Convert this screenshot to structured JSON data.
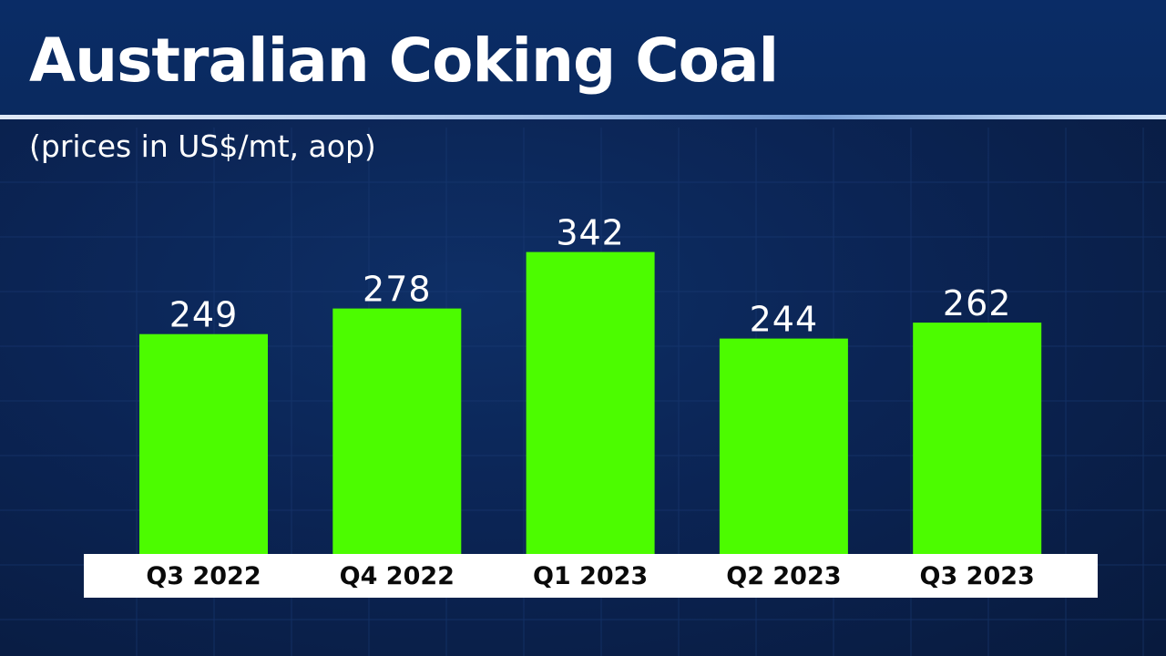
{
  "chart_data": {
    "type": "bar",
    "title": "Australian Coking Coal",
    "subtitle": "(prices in US$/mt, aop)",
    "categories": [
      "Q3 2022",
      "Q4 2022",
      "Q1 2023",
      "Q2 2023",
      "Q3 2023"
    ],
    "values": [
      249,
      278,
      342,
      244,
      262
    ],
    "value_labels": [
      "249",
      "278",
      "342",
      "244",
      "262"
    ],
    "xlabel": "",
    "ylabel": "",
    "grid": false,
    "legend": "none",
    "colors": {
      "bar": "#4cfc00",
      "background": "#0b2454",
      "axis_band": "#ffffff"
    }
  }
}
